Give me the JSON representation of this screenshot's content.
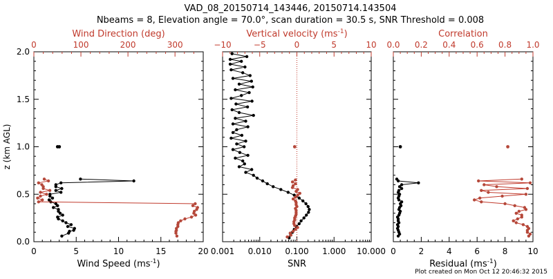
{
  "title_line1": "VAD_08_20150714_143446, 20150714.143504",
  "title_line2": "Nbeams = 8, Elevation angle = 70.0°, scan duration = 30.5 s, SNR Threshold = 0.008",
  "footer": "Plot created on Mon Oct 12 20:46:32 2015",
  "colors": {
    "primary": "#000000",
    "secondary": "#c0392b",
    "secondary_marker": "#b5483a"
  },
  "chart_data": [
    {
      "type": "line",
      "panel": "wind",
      "ylabel": "z (km AGL)",
      "ylim": [
        0,
        2
      ],
      "yticks": [
        "0.0",
        "0.5",
        "1.0",
        "1.5",
        "2.0"
      ],
      "bottom_axis": {
        "label": "Wind Speed (ms",
        "unit_sup": "-1",
        "label_end": ")",
        "lim": [
          0,
          20
        ],
        "ticks": [
          "0",
          "5",
          "10",
          "15",
          "20"
        ]
      },
      "top_axis": {
        "label": "Wind Direction (deg)",
        "lim": [
          0,
          360
        ],
        "ticks": [
          "0",
          "100",
          "200",
          "300"
        ]
      },
      "series": [
        {
          "name": "Wind Speed",
          "axis": "bottom",
          "color": "#000000",
          "z": [
            0.06,
            0.09,
            0.11,
            0.12,
            0.14,
            0.16,
            0.18,
            0.2,
            0.22,
            0.24,
            0.26,
            0.28,
            0.3,
            0.32,
            0.34,
            0.36,
            0.38,
            0.4,
            0.42,
            0.44,
            0.46,
            0.48,
            0.5,
            0.52,
            0.54,
            0.56,
            0.58,
            0.6,
            0.62,
            0.64,
            0.66
          ],
          "values": [
            3.3,
            4.1,
            4.2,
            4.7,
            4.8,
            4.0,
            4.4,
            3.8,
            3.4,
            2.9,
            2.8,
            3.4,
            3.1,
            2.9,
            2.9,
            2.3,
            2.8,
            2.6,
            2.0,
            1.8,
            2.2,
            1.9,
            1.9,
            3.2,
            2.6,
            3.3,
            2.6,
            2.6,
            3.2,
            11.8,
            5.5
          ]
        },
        {
          "name": "Wind Direction",
          "axis": "top",
          "color": "#b5483a",
          "z": [
            0.06,
            0.09,
            0.11,
            0.12,
            0.14,
            0.16,
            0.18,
            0.2,
            0.22,
            0.24,
            0.26,
            0.28,
            0.3,
            0.32,
            0.34,
            0.36,
            0.38,
            0.4,
            0.42,
            0.44,
            0.46,
            0.48,
            0.5,
            0.52,
            0.54,
            0.56,
            0.58,
            0.6,
            0.62,
            0.64,
            0.66
          ],
          "values": [
            304,
            302,
            302,
            303,
            303,
            306,
            306,
            307,
            312,
            321,
            335,
            344,
            340,
            341,
            346,
            348,
            338,
            343,
            10,
            18,
            8,
            14,
            27,
            14,
            34,
            20,
            20,
            17,
            10,
            31,
            22
          ]
        }
      ],
      "isolated_points": [
        {
          "axis": "bottom",
          "color": "#000000",
          "x": 2.8,
          "z": 1.0
        },
        {
          "axis": "bottom",
          "color": "#000000",
          "x": 3.0,
          "z": 1.0
        }
      ]
    },
    {
      "type": "line",
      "panel": "vertical",
      "bottom_axis": {
        "label": "SNR",
        "scale": "log",
        "lim": [
          0.001,
          10
        ],
        "ticks": [
          "0.001",
          "0.010",
          "0.100",
          "1.000",
          "10.000"
        ]
      },
      "top_axis": {
        "label": "Vertical velocity (ms",
        "unit_sup": "-1",
        "label_end": ")",
        "lim": [
          -10,
          10
        ],
        "ticks": [
          "−10",
          "−5",
          "0",
          "5",
          "10"
        ]
      },
      "zero_line": 0,
      "series": [
        {
          "name": "SNR",
          "axis": "bottom",
          "color": "#000000",
          "z": [
            1.98,
            1.95,
            1.92,
            1.9,
            1.87,
            1.84,
            1.81,
            1.78,
            1.75,
            1.72,
            1.69,
            1.66,
            1.63,
            1.6,
            1.57,
            1.54,
            1.51,
            1.48,
            1.45,
            1.42,
            1.39,
            1.36,
            1.33,
            1.3,
            1.27,
            1.24,
            1.21,
            1.18,
            1.15,
            1.12,
            1.09,
            1.06,
            1.03,
            1.0,
            0.97,
            0.94,
            0.91,
            0.88,
            0.85,
            0.82,
            0.79,
            0.76,
            0.73,
            0.7,
            0.67,
            0.64,
            0.61,
            0.58,
            0.55,
            0.52,
            0.49,
            0.46,
            0.43,
            0.4,
            0.37,
            0.34,
            0.31,
            0.28,
            0.25,
            0.22,
            0.19,
            0.16,
            0.13,
            0.1,
            0.07,
            0.04
          ],
          "values": [
            0.0018,
            0.0045,
            0.0016,
            0.0032,
            0.0016,
            0.004,
            0.0017,
            0.0035,
            0.0055,
            0.0019,
            0.006,
            0.0028,
            0.0065,
            0.0022,
            0.0052,
            0.0032,
            0.0017,
            0.0062,
            0.0023,
            0.0047,
            0.0018,
            0.0028,
            0.0068,
            0.0022,
            0.0042,
            0.0019,
            0.0048,
            0.0024,
            0.0019,
            0.0033,
            0.0017,
            0.0042,
            0.0024,
            0.0038,
            0.0019,
            0.0029,
            0.0048,
            0.0022,
            0.0035,
            0.0039,
            0.0028,
            0.0061,
            0.0042,
            0.0068,
            0.0085,
            0.012,
            0.016,
            0.023,
            0.037,
            0.058,
            0.085,
            0.115,
            0.145,
            0.175,
            0.2,
            0.215,
            0.205,
            0.18,
            0.155,
            0.13,
            0.115,
            0.098,
            0.085,
            0.076,
            0.068,
            0.062
          ]
        },
        {
          "name": "Vertical velocity",
          "axis": "top",
          "color": "#b5483a",
          "z": [
            0.05,
            0.07,
            0.09,
            0.11,
            0.13,
            0.15,
            0.17,
            0.19,
            0.21,
            0.23,
            0.25,
            0.27,
            0.29,
            0.31,
            0.33,
            0.35,
            0.37,
            0.39,
            0.41,
            0.43,
            0.45,
            0.47,
            0.49,
            0.51,
            0.53,
            0.55,
            0.57,
            0.59,
            0.61,
            0.63,
            0.65
          ],
          "values": [
            -1.3,
            -0.8,
            -0.9,
            -0.5,
            -0.2,
            0.1,
            -0.3,
            -0.4,
            -0.4,
            -0.3,
            -0.3,
            -0.2,
            -0.1,
            -0.1,
            -0.1,
            -0.2,
            0.0,
            -0.1,
            -0.1,
            -0.2,
            -0.5,
            -0.2,
            0.1,
            0.4,
            -0.1,
            0.1,
            -0.6,
            -0.5,
            -0.2,
            -0.6,
            -0.2
          ]
        }
      ],
      "isolated_points": [
        {
          "axis": "top",
          "color": "#b5483a",
          "x": -0.3,
          "z": 1.0
        }
      ]
    },
    {
      "type": "line",
      "panel": "residual",
      "bottom_axis": {
        "label": "Residual (ms",
        "unit_sup": "-1",
        "label_end": ")",
        "lim": [
          0,
          10
        ],
        "ticks": [
          "0",
          "2",
          "4",
          "6",
          "8",
          "10"
        ]
      },
      "top_axis": {
        "label": "Correlation",
        "lim": [
          0,
          1
        ],
        "ticks": [
          "0.0",
          "0.2",
          "0.4",
          "0.6",
          "0.8",
          "1.0"
        ]
      },
      "series": [
        {
          "name": "Residual",
          "axis": "bottom",
          "color": "#000000",
          "z": [
            0.06,
            0.08,
            0.1,
            0.12,
            0.14,
            0.16,
            0.18,
            0.2,
            0.22,
            0.24,
            0.26,
            0.28,
            0.3,
            0.32,
            0.34,
            0.36,
            0.38,
            0.4,
            0.42,
            0.44,
            0.46,
            0.48,
            0.5,
            0.52,
            0.54,
            0.56,
            0.58,
            0.6,
            0.62,
            0.64,
            0.66
          ],
          "values": [
            0.35,
            0.45,
            0.4,
            0.35,
            0.3,
            0.35,
            0.3,
            0.4,
            0.35,
            0.35,
            0.3,
            0.4,
            0.45,
            0.5,
            0.4,
            0.45,
            0.55,
            0.5,
            0.6,
            0.4,
            0.35,
            0.4,
            0.45,
            0.35,
            0.4,
            0.6,
            0.45,
            0.6,
            1.8,
            0.35,
            0.25
          ]
        },
        {
          "name": "Correlation",
          "axis": "top",
          "color": "#b5483a",
          "z": [
            0.06,
            0.08,
            0.1,
            0.12,
            0.14,
            0.16,
            0.18,
            0.2,
            0.22,
            0.24,
            0.26,
            0.28,
            0.3,
            0.32,
            0.34,
            0.36,
            0.38,
            0.4,
            0.42,
            0.44,
            0.46,
            0.48,
            0.5,
            0.52,
            0.54,
            0.56,
            0.58,
            0.6,
            0.62,
            0.64,
            0.66
          ],
          "values": [
            0.97,
            0.98,
            0.96,
            0.96,
            0.97,
            0.96,
            0.93,
            0.88,
            0.86,
            0.89,
            0.92,
            0.92,
            0.88,
            0.9,
            0.95,
            0.94,
            0.87,
            0.8,
            0.63,
            0.58,
            0.62,
            0.78,
            0.95,
            0.68,
            0.63,
            0.96,
            0.74,
            0.65,
            0.98,
            0.61,
            0.92
          ]
        }
      ],
      "isolated_points": [
        {
          "axis": "bottom",
          "color": "#000000",
          "x": 0.5,
          "z": 1.0
        },
        {
          "axis": "top",
          "color": "#b5483a",
          "x": 0.82,
          "z": 1.0
        }
      ]
    }
  ]
}
